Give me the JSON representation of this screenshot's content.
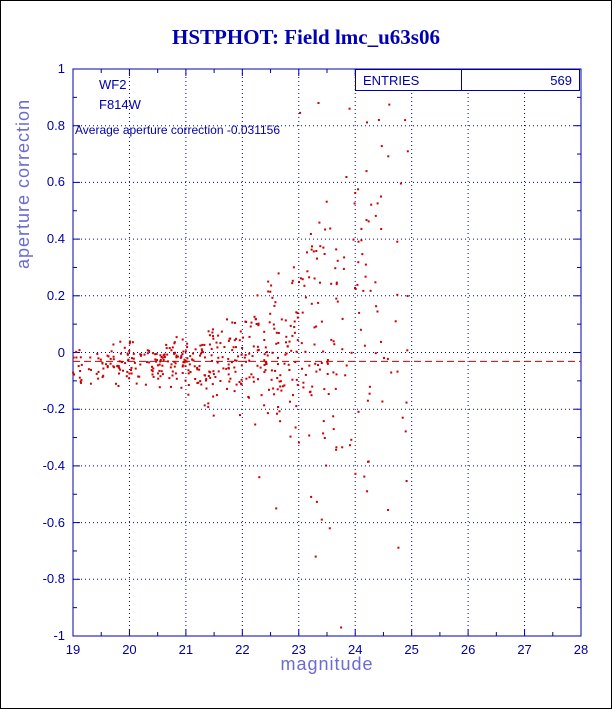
{
  "figure": {
    "title": "HSTPHOT: Field lmc_u63s06"
  },
  "colors": {
    "background": "#ffffff",
    "frame": "#0000a8",
    "grid": "#0000a8",
    "title": "#0000b4",
    "text": "#0000a8",
    "axis_label": "#6b6bd6",
    "points": "#cc0000",
    "reference_line": "#cc0000"
  },
  "chart_data": {
    "type": "scatter",
    "title": "HSTPHOT: Field lmc_u63s06",
    "xlabel": "magnitude",
    "ylabel": "aperture correction",
    "xlim": [
      19,
      28
    ],
    "ylim": [
      -1,
      1
    ],
    "xtick_labels": [
      "19",
      "20",
      "21",
      "22",
      "23",
      "24",
      "25",
      "26",
      "27",
      "28"
    ],
    "ytick_labels": [
      "1",
      "0.8",
      "0.6",
      "0.4",
      "0.2",
      "0",
      "-0.2",
      "-0.4",
      "-0.6",
      "-0.8",
      "-1"
    ],
    "grid": "dotted lines at every major tick, both axes",
    "n_points": 569,
    "point_color": "#cc0000",
    "reference_line": {
      "y": -0.031156,
      "style": "dashed",
      "color": "#cc0000"
    },
    "annotations": {
      "camera": "WF2",
      "filter": "F814W",
      "entries_label": "ENTRIES",
      "entries_value": "569",
      "average_text": "Average aperture correction -0.031156",
      "average_value": -0.031156
    },
    "distribution_note": "Dense band of points near y=-0.03 from mag 19-23; scatter fans out vertically for mag>22.5, reaching +0.9 and -1 around mag 23-25; no points beyond mag 25.",
    "clusters": [
      {
        "x_min": 19.0,
        "x_max": 19.6,
        "count": 30,
        "y_mean": -0.05,
        "y_sigma": 0.035
      },
      {
        "x_min": 19.6,
        "x_max": 20.5,
        "count": 75,
        "y_mean": -0.04,
        "y_sigma": 0.035
      },
      {
        "x_min": 20.5,
        "x_max": 21.3,
        "count": 95,
        "y_mean": -0.03,
        "y_sigma": 0.045
      },
      {
        "x_min": 21.3,
        "x_max": 22.2,
        "count": 100,
        "y_mean": -0.025,
        "y_sigma": 0.075
      },
      {
        "x_min": 22.2,
        "x_max": 23.0,
        "count": 105,
        "y_mean": 0.02,
        "y_sigma": 0.14
      },
      {
        "x_min": 23.0,
        "x_max": 23.8,
        "count": 85,
        "y_mean": 0.1,
        "y_sigma": 0.26
      },
      {
        "x_min": 23.8,
        "x_max": 24.5,
        "count": 50,
        "y_mean": 0.12,
        "y_sigma": 0.3
      },
      {
        "x_min": 24.5,
        "x_max": 24.95,
        "count": 20,
        "y_mean": 0.2,
        "y_sigma": 0.35
      }
    ],
    "outlier_points": [
      [
        23.35,
        0.88
      ],
      [
        23.9,
        0.86
      ],
      [
        24.42,
        0.82
      ],
      [
        23.75,
        -0.97
      ],
      [
        23.3,
        -0.72
      ],
      [
        23.55,
        -0.62
      ],
      [
        22.6,
        -0.55
      ],
      [
        24.2,
        0.64
      ],
      [
        22.3,
        -0.44
      ]
    ]
  }
}
